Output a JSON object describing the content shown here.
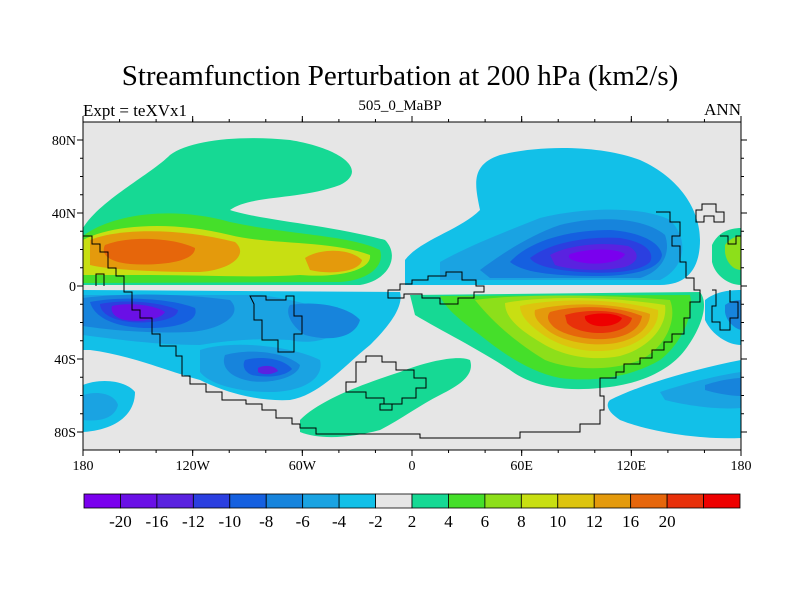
{
  "title": "Streamfunction Perturbation at 200 hPa (km2/s)",
  "left_string": "Expt = teXVx1",
  "center_string": "505_0_MaBP",
  "right_string": "ANN",
  "lat_labels": [
    "80N",
    "40N",
    "0",
    "40S",
    "80S"
  ],
  "lon_labels": [
    "180",
    "120W",
    "60W",
    "0",
    "60E",
    "120E",
    "180"
  ],
  "colorbar": {
    "colors": [
      "#7a00ee",
      "#6a10e6",
      "#5a22e0",
      "#2b3fe0",
      "#1560e0",
      "#1784dc",
      "#1aa3e2",
      "#12c0e8",
      "#e6e6e6",
      "#16d994",
      "#45df2a",
      "#8ddf1a",
      "#c8df12",
      "#ddc40e",
      "#e49a0c",
      "#e6660b",
      "#e8300a",
      "#ee0000"
    ],
    "labels": [
      "-20",
      "-16",
      "-12",
      "-10",
      "-8",
      "-6",
      "-4",
      "-2",
      "2",
      "4",
      "6",
      "8",
      "10",
      "12",
      "16",
      "20"
    ]
  }
}
